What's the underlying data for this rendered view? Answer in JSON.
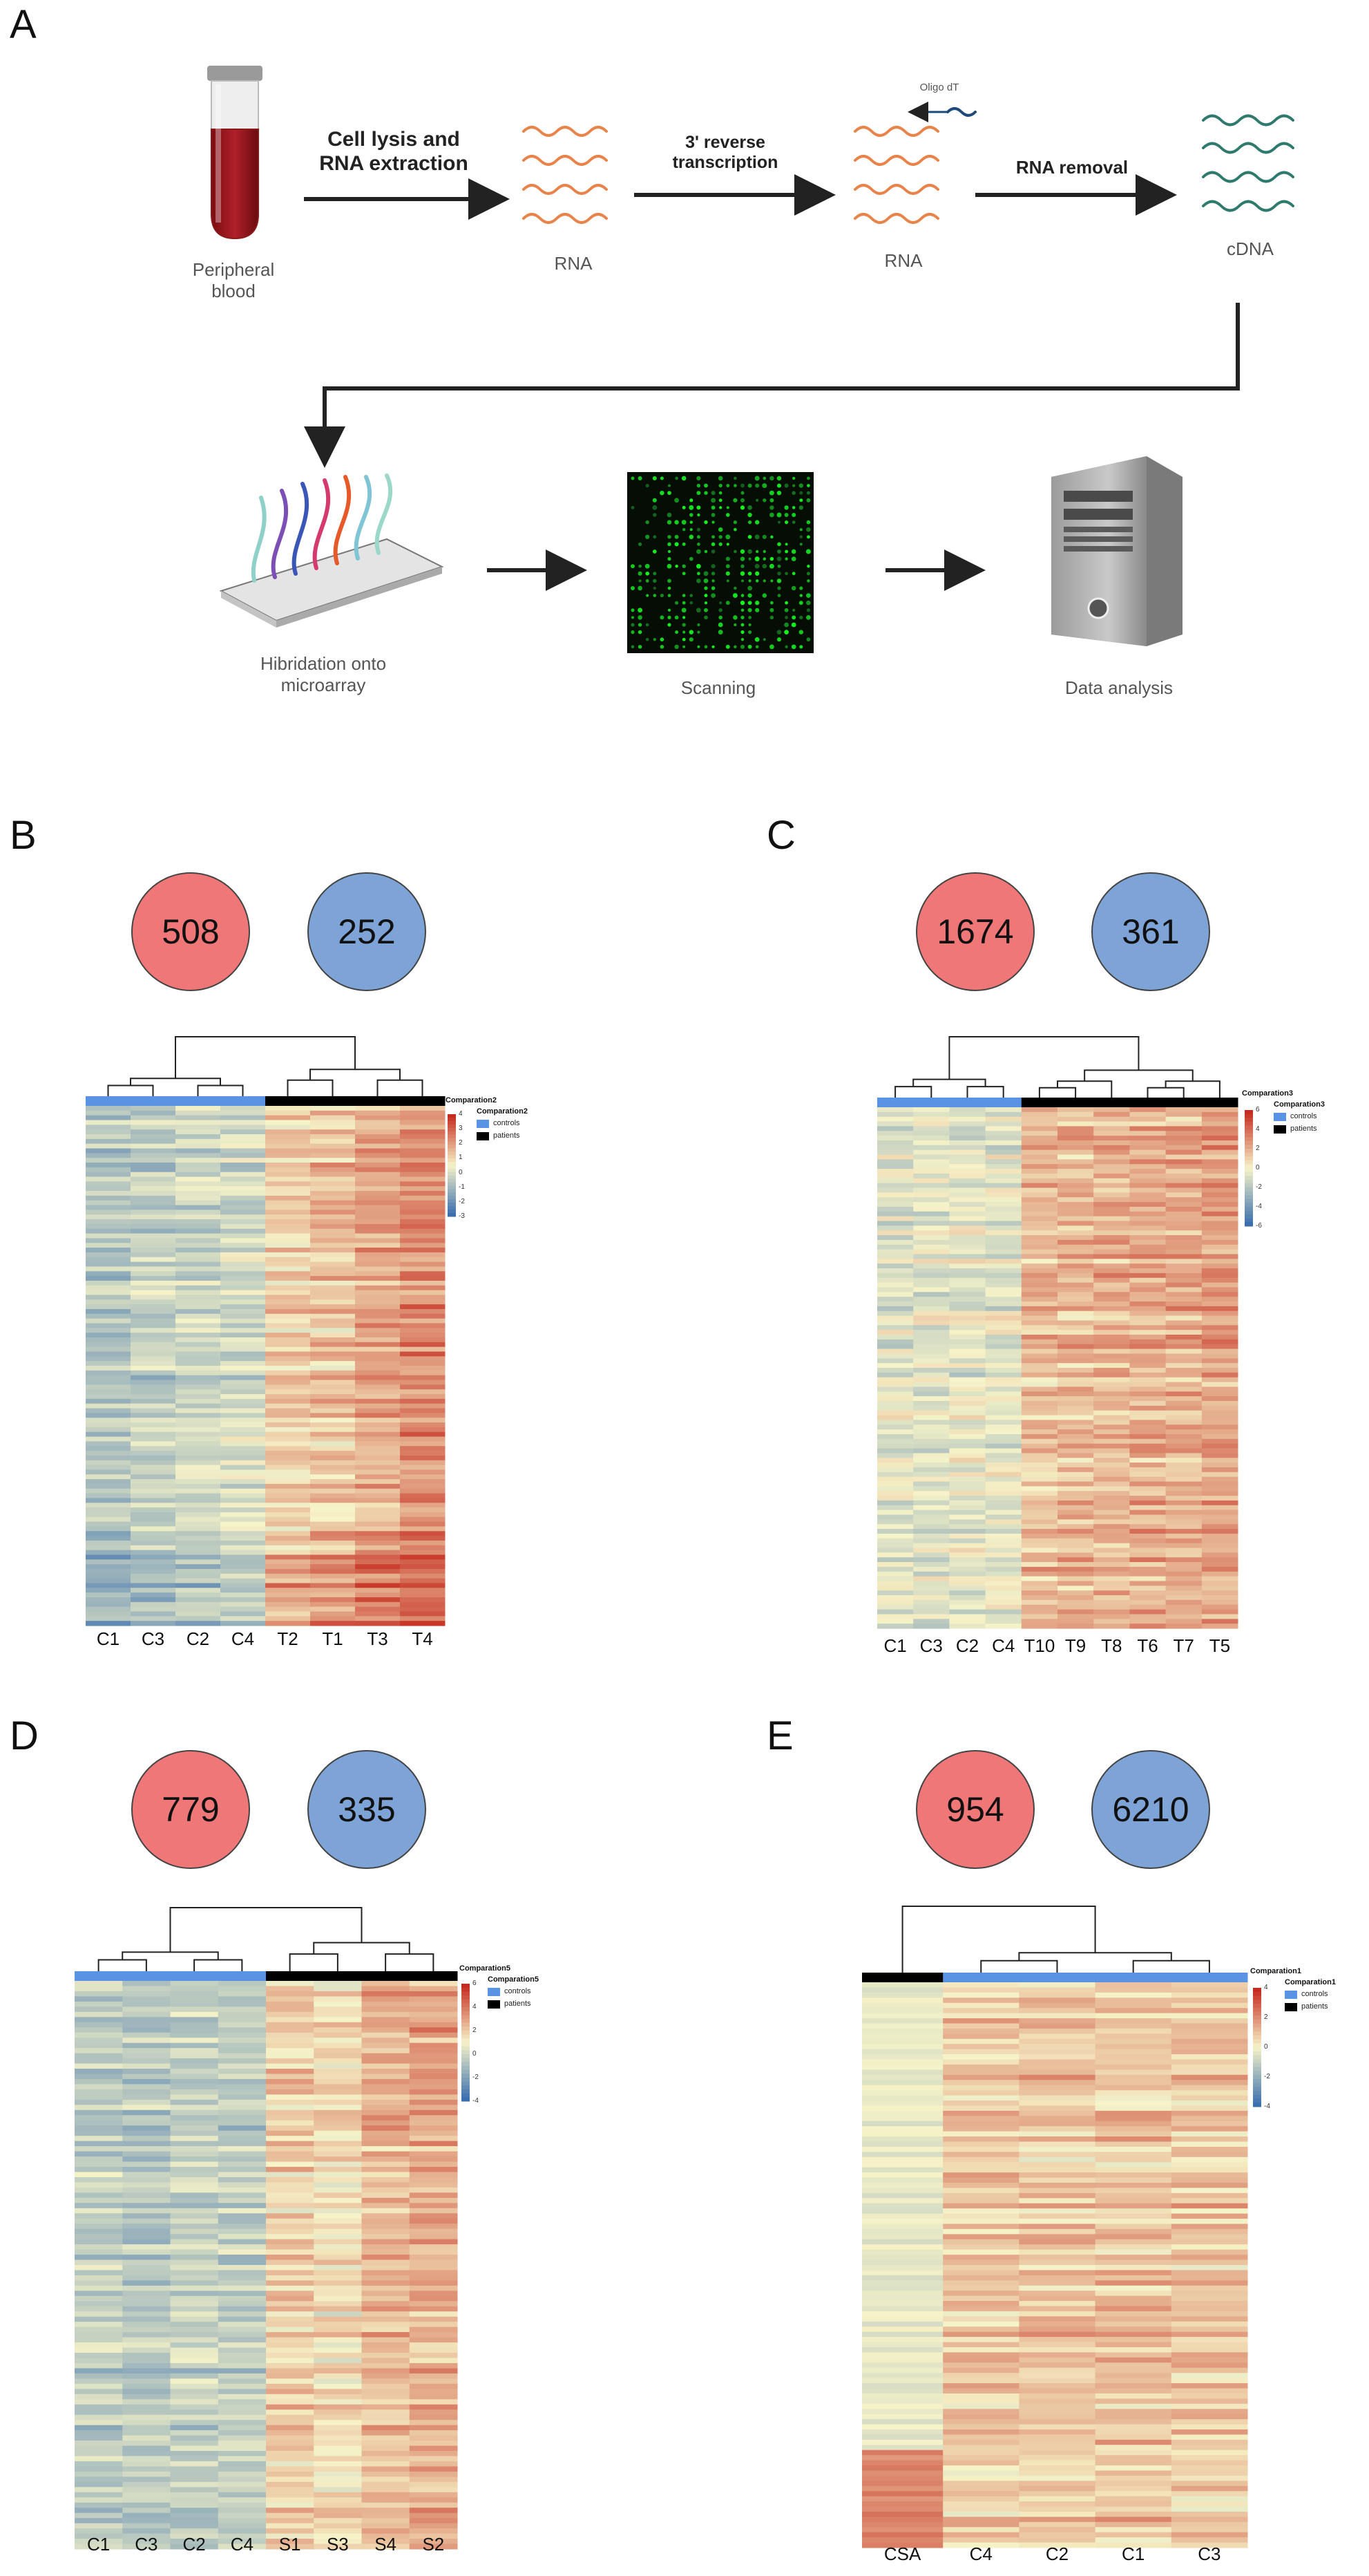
{
  "colors": {
    "rna": "#e8834a",
    "cdna": "#2f7a6e",
    "up_circle": "#f07777",
    "down_circle": "#7ea3d6",
    "controls": "#5b93e4",
    "patients": "#000000",
    "heat_low": "#3a6fae",
    "heat_mid": "#f6f3c8",
    "heat_high": "#c52b1f",
    "arrow": "#222222"
  },
  "panel_a": {
    "letter": "A",
    "blood_label": "Peripheral blood",
    "step1_label": "Cell lysis and RNA extraction",
    "rna_label_1": "RNA",
    "step2_label": "3' reverse transcription",
    "oligo_label": "Oligo dT",
    "rna_label_2": "RNA",
    "step3_label": "RNA removal",
    "cdna_label": "cDNA",
    "hybridization_label": "Hibridation onto microarray",
    "scanning_label": "Scanning",
    "analysis_label": "Data analysis",
    "icons": [
      "blood-tube-icon",
      "rna-strands-icon",
      "cdna-strands-icon",
      "microarray-slide-icon",
      "scan-grid-icon",
      "computer-tower-icon"
    ]
  },
  "panels": [
    {
      "letter": "B",
      "up_count": "508",
      "down_count": "252",
      "legend_title": "Comparation2",
      "legend_header": "Comparation2",
      "legend_controls": "controls",
      "legend_patients": "patients",
      "scale_ticks": [
        "4",
        "3",
        "2",
        "1",
        "0",
        "-1",
        "-2",
        "-3"
      ],
      "columns": [
        "C1",
        "C3",
        "C2",
        "C4",
        "T2",
        "T1",
        "T3",
        "T4"
      ],
      "groups": [
        "controls",
        "controls",
        "controls",
        "controls",
        "patients",
        "patients",
        "patients",
        "patients"
      ]
    },
    {
      "letter": "C",
      "up_count": "1674",
      "down_count": "361",
      "legend_title": "Comparation3",
      "legend_header": "Comparation3",
      "legend_controls": "controls",
      "legend_patients": "patients",
      "scale_ticks": [
        "6",
        "4",
        "2",
        "0",
        "-2",
        "-4",
        "-6"
      ],
      "columns": [
        "C1",
        "C3",
        "C2",
        "C4",
        "T10",
        "T9",
        "T8",
        "T6",
        "T7",
        "T5"
      ],
      "groups": [
        "controls",
        "controls",
        "controls",
        "controls",
        "patients",
        "patients",
        "patients",
        "patients",
        "patients",
        "patients"
      ]
    },
    {
      "letter": "D",
      "up_count": "779",
      "down_count": "335",
      "legend_title": "Comparation5",
      "legend_header": "Comparation5",
      "legend_controls": "controls",
      "legend_patients": "patients",
      "scale_ticks": [
        "6",
        "4",
        "2",
        "0",
        "-2",
        "-4"
      ],
      "columns": [
        "C1",
        "C3",
        "C2",
        "C4",
        "S1",
        "S3",
        "S4",
        "S2"
      ],
      "groups": [
        "controls",
        "controls",
        "controls",
        "controls",
        "patients",
        "patients",
        "patients",
        "patients"
      ]
    },
    {
      "letter": "E",
      "up_count": "954",
      "down_count": "6210",
      "legend_title": "Comparation1",
      "legend_header": "Comparation1",
      "legend_controls": "controls",
      "legend_patients": "patients",
      "scale_ticks": [
        "4",
        "2",
        "0",
        "-2",
        "-4"
      ],
      "columns": [
        "CSA",
        "C4",
        "C2",
        "C1",
        "C3"
      ],
      "groups": [
        "patients",
        "controls",
        "controls",
        "controls",
        "controls"
      ]
    }
  ]
}
